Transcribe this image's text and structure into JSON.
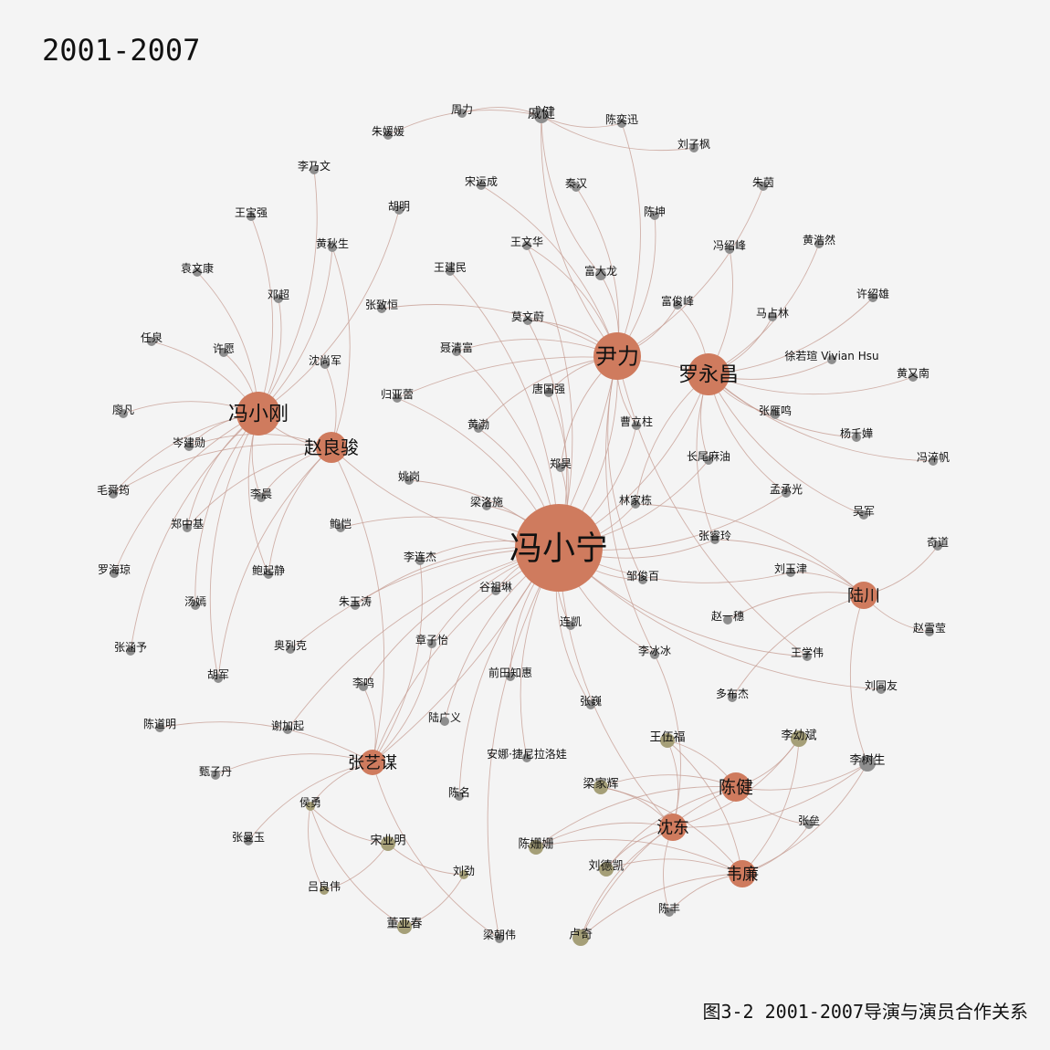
{
  "title": "2001-2007",
  "caption": "图3-2 2001-2007导演与演员合作关系",
  "colors": {
    "director": "#cf7b5e",
    "actor_gray": "#8e8e8e",
    "actor_olive": "#a59f78",
    "edge": "#c49a8f",
    "background": "#f4f4f4"
  },
  "nodes": [
    {
      "id": "feng_xiaoning",
      "label": "冯小宁",
      "type": "director"
    },
    {
      "id": "yin_li",
      "label": "尹力",
      "type": "director"
    },
    {
      "id": "luo_yongchang",
      "label": "罗永昌",
      "type": "director"
    },
    {
      "id": "feng_xiaogang",
      "label": "冯小刚",
      "type": "director"
    },
    {
      "id": "zhao_liangjun",
      "label": "赵良骏",
      "type": "director"
    },
    {
      "id": "lu_chuan",
      "label": "陆川",
      "type": "director"
    },
    {
      "id": "zhang_yimou",
      "label": "张艺谋",
      "type": "director"
    },
    {
      "id": "chen_jian",
      "label": "陈健",
      "type": "director"
    },
    {
      "id": "shen_dong",
      "label": "沈东",
      "type": "director"
    },
    {
      "id": "wei_lian",
      "label": "韦廉",
      "type": "director"
    },
    {
      "id": "qi_jian",
      "label": "戚健",
      "type": "actor"
    },
    {
      "id": "zhou_li",
      "label": "周力",
      "type": "actor"
    },
    {
      "id": "zhu_yuanyuan",
      "label": "朱媛媛",
      "type": "actor"
    },
    {
      "id": "chen_yixun",
      "label": "陈奕迅",
      "type": "actor"
    },
    {
      "id": "liu_zifeng",
      "label": "刘子枫",
      "type": "actor"
    },
    {
      "id": "li_naiwen",
      "label": "李乃文",
      "type": "actor"
    },
    {
      "id": "song_yuncheng",
      "label": "宋运成",
      "type": "actor"
    },
    {
      "id": "qin_han",
      "label": "秦汉",
      "type": "actor"
    },
    {
      "id": "zhu_yin",
      "label": "朱茵",
      "type": "actor"
    },
    {
      "id": "hu_ming",
      "label": "胡明",
      "type": "actor"
    },
    {
      "id": "wang_baoqiang",
      "label": "王宝强",
      "type": "actor"
    },
    {
      "id": "chen_kun",
      "label": "陈坤",
      "type": "actor"
    },
    {
      "id": "huang_qiusheng",
      "label": "黄秋生",
      "type": "actor"
    },
    {
      "id": "wang_wenhua",
      "label": "王文华",
      "type": "actor"
    },
    {
      "id": "feng_shaofeng",
      "label": "冯绍峰",
      "type": "actor"
    },
    {
      "id": "huang_haoran",
      "label": "黄浩然",
      "type": "actor"
    },
    {
      "id": "yuan_wenkang",
      "label": "袁文康",
      "type": "actor"
    },
    {
      "id": "wang_jianmin",
      "label": "王建民",
      "type": "actor"
    },
    {
      "id": "fu_dalong",
      "label": "富大龙",
      "type": "actor"
    },
    {
      "id": "deng_chao",
      "label": "邓超",
      "type": "actor"
    },
    {
      "id": "zhang_zhiheng",
      "label": "张致恒",
      "type": "actor"
    },
    {
      "id": "fu_junfeng",
      "label": "富俊峰",
      "type": "actor"
    },
    {
      "id": "xu_shaoxiong",
      "label": "许绍雄",
      "type": "actor"
    },
    {
      "id": "ma_zhanlin",
      "label": "马占林",
      "type": "actor"
    },
    {
      "id": "mo_wenwei",
      "label": "莫文蔚",
      "type": "actor"
    },
    {
      "id": "ren_quan",
      "label": "任泉",
      "type": "actor"
    },
    {
      "id": "xu_yuan",
      "label": "许愿",
      "type": "actor"
    },
    {
      "id": "nie_qingfu",
      "label": "聂清富",
      "type": "actor"
    },
    {
      "id": "shen_shangjun",
      "label": "沈尚军",
      "type": "actor"
    },
    {
      "id": "xu_ruoxuan",
      "label": "徐若瑄 Vivian Hsu",
      "type": "actor"
    },
    {
      "id": "huang_younan",
      "label": "黄又南",
      "type": "actor"
    },
    {
      "id": "gui_yalei",
      "label": "归亚蕾",
      "type": "actor"
    },
    {
      "id": "tang_guoqiang",
      "label": "唐国强",
      "type": "actor"
    },
    {
      "id": "zhang_yanming",
      "label": "张雁鸣",
      "type": "actor"
    },
    {
      "id": "liao_fan",
      "label": "廖凡",
      "type": "actor"
    },
    {
      "id": "huang_bo",
      "label": "黄渤",
      "type": "actor"
    },
    {
      "id": "cao_lizhu",
      "label": "曹立柱",
      "type": "actor"
    },
    {
      "id": "yang_qianhua",
      "label": "杨千嬅",
      "type": "actor"
    },
    {
      "id": "cen_jianxun",
      "label": "岑建勋",
      "type": "actor"
    },
    {
      "id": "feng_zhengfan",
      "label": "冯淬帆",
      "type": "actor"
    },
    {
      "id": "zheng_hao",
      "label": "郑昊",
      "type": "actor"
    },
    {
      "id": "changwei_maiyou",
      "label": "长尾麻油",
      "type": "actor"
    },
    {
      "id": "yao_gang",
      "label": "姚岗",
      "type": "actor"
    },
    {
      "id": "mao_shunjun",
      "label": "毛舜筠",
      "type": "actor"
    },
    {
      "id": "li_chen",
      "label": "李晨",
      "type": "actor"
    },
    {
      "id": "liang_luoshi",
      "label": "梁洛施",
      "type": "actor"
    },
    {
      "id": "lin_jiadong",
      "label": "林家栋",
      "type": "actor"
    },
    {
      "id": "meng_chengguang",
      "label": "孟承光",
      "type": "actor"
    },
    {
      "id": "zheng_zhongji",
      "label": "郑中基",
      "type": "actor"
    },
    {
      "id": "bao_kai",
      "label": "鲍恺",
      "type": "actor"
    },
    {
      "id": "wu_jun",
      "label": "吴军",
      "type": "actor"
    },
    {
      "id": "zhang_chunling",
      "label": "张睿玲",
      "type": "actor"
    },
    {
      "id": "qi_dao",
      "label": "奇道",
      "type": "actor"
    },
    {
      "id": "luo_haiqiong",
      "label": "罗海琼",
      "type": "actor"
    },
    {
      "id": "li_lianjie",
      "label": "李连杰",
      "type": "actor"
    },
    {
      "id": "bao_qijing",
      "label": "鲍起静",
      "type": "actor"
    },
    {
      "id": "zou_junbai",
      "label": "邹俊百",
      "type": "actor"
    },
    {
      "id": "liu_yujin",
      "label": "刘玉津",
      "type": "actor"
    },
    {
      "id": "gu_zulin",
      "label": "谷祖琳",
      "type": "actor"
    },
    {
      "id": "tang_yan",
      "label": "汤嫣",
      "type": "actor"
    },
    {
      "id": "zhu_yutao",
      "label": "朱玉涛",
      "type": "actor"
    },
    {
      "id": "zhao_yisui",
      "label": "赵一穗",
      "type": "actor"
    },
    {
      "id": "zhao_xueying",
      "label": "赵雪莹",
      "type": "actor"
    },
    {
      "id": "lian_kai",
      "label": "连凯",
      "type": "actor"
    },
    {
      "id": "zhang_hanyu",
      "label": "张涵予",
      "type": "actor"
    },
    {
      "id": "zhang_ziyi",
      "label": "章子怡",
      "type": "actor"
    },
    {
      "id": "aoliekke",
      "label": "奥列克",
      "type": "actor"
    },
    {
      "id": "li_bingbing",
      "label": "李冰冰",
      "type": "actor"
    },
    {
      "id": "wang_xuewei",
      "label": "王学伟",
      "type": "actor"
    },
    {
      "id": "hu_jun",
      "label": "胡军",
      "type": "actor"
    },
    {
      "id": "qiantian_zhihui",
      "label": "前田知惠",
      "type": "actor"
    },
    {
      "id": "li_ming",
      "label": "李鸣",
      "type": "actor"
    },
    {
      "id": "liu_tongyou",
      "label": "刘同友",
      "type": "actor"
    },
    {
      "id": "duo_bujie",
      "label": "多布杰",
      "type": "actor"
    },
    {
      "id": "zhang_wei",
      "label": "张巍",
      "type": "actor"
    },
    {
      "id": "lu_guangyi",
      "label": "陆广义",
      "type": "actor"
    },
    {
      "id": "chen_daoming",
      "label": "陈道明",
      "type": "actor"
    },
    {
      "id": "xie_jiaqi",
      "label": "谢加起",
      "type": "actor"
    },
    {
      "id": "wang_wufu",
      "label": "王伍福",
      "type": "actor"
    },
    {
      "id": "li_youbin",
      "label": "李幼斌",
      "type": "actor"
    },
    {
      "id": "anna",
      "label": "安娜·捷尼拉洛娃",
      "type": "actor"
    },
    {
      "id": "li_shusheng",
      "label": "李树生",
      "type": "actor"
    },
    {
      "id": "zhen_zidan",
      "label": "甄子丹",
      "type": "actor"
    },
    {
      "id": "liang_jiahui",
      "label": "梁家辉",
      "type": "actor"
    },
    {
      "id": "chen_ming",
      "label": "陈名",
      "type": "actor"
    },
    {
      "id": "hou_yong",
      "label": "侯勇",
      "type": "actor"
    },
    {
      "id": "zhang_quan",
      "label": "张垒",
      "type": "actor"
    },
    {
      "id": "zhang_manyu",
      "label": "张曼玉",
      "type": "actor"
    },
    {
      "id": "song_yeming",
      "label": "宋业明",
      "type": "actor"
    },
    {
      "id": "chen_shanshan",
      "label": "陈姗姗",
      "type": "actor"
    },
    {
      "id": "liu_dekai",
      "label": "刘德凯",
      "type": "actor"
    },
    {
      "id": "liu_jin",
      "label": "刘劲",
      "type": "actor"
    },
    {
      "id": "lv_liangwei",
      "label": "吕良伟",
      "type": "actor"
    },
    {
      "id": "chen_feng",
      "label": "陈丰",
      "type": "actor"
    },
    {
      "id": "dong_yachun",
      "label": "董亚春",
      "type": "actor"
    },
    {
      "id": "liang_chaowei",
      "label": "梁朝伟",
      "type": "actor"
    },
    {
      "id": "lu_qi",
      "label": "卢奇",
      "type": "actor"
    }
  ]
}
